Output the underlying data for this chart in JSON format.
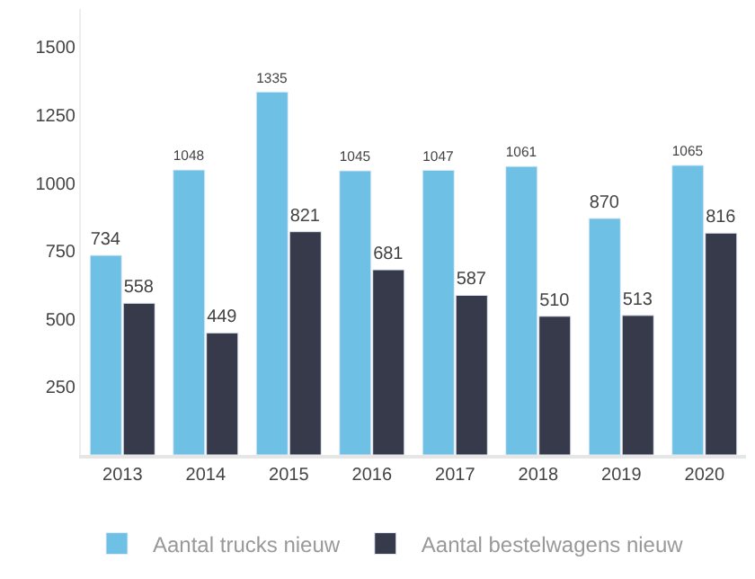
{
  "chart_data": {
    "type": "bar",
    "categories": [
      "2013",
      "2014",
      "2015",
      "2016",
      "2017",
      "2018",
      "2019",
      "2020"
    ],
    "series": [
      {
        "name": "Aantal trucks nieuw",
        "color": "#6fc0e5",
        "values": [
          734,
          1048,
          1335,
          1045,
          1047,
          1061,
          870,
          1065
        ]
      },
      {
        "name": "Aantal bestelwagens nieuw",
        "color": "#373a4a",
        "values": [
          558,
          449,
          821,
          681,
          587,
          510,
          513,
          816
        ]
      }
    ],
    "ylim": [
      0,
      1640
    ],
    "yticks": [
      250,
      500,
      750,
      1000,
      1250,
      1500
    ],
    "data_labels": true,
    "legend": "bottom"
  }
}
